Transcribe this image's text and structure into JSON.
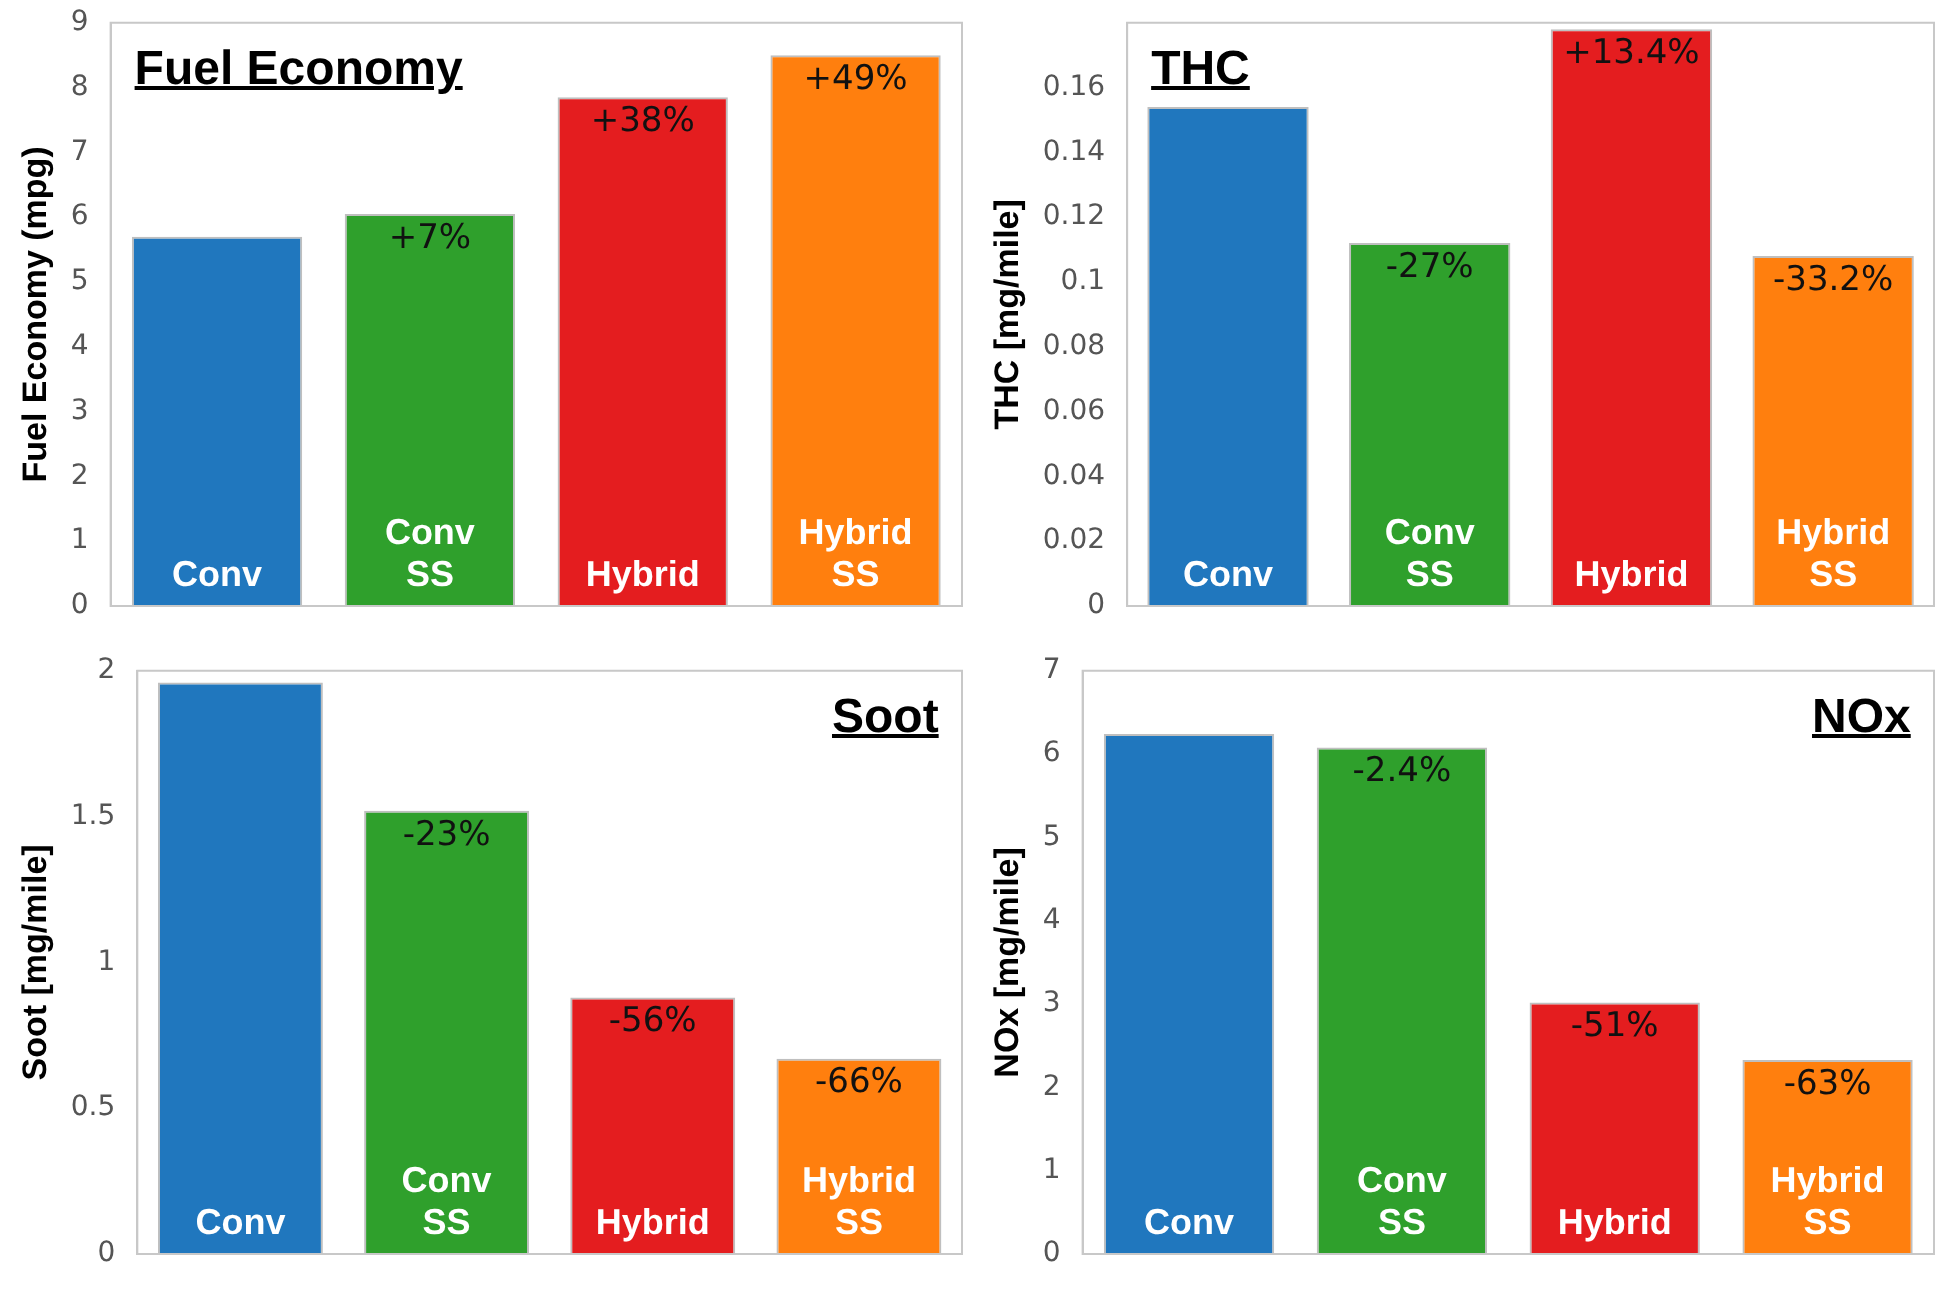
{
  "chart_data": [
    {
      "type": "bar",
      "title": "Fuel Economy",
      "ylabel": "Fuel Economy (mpg)",
      "categories": [
        "Conv",
        "Conv SS",
        "Hybrid",
        "Hybrid SS"
      ],
      "values": [
        5.7,
        6.05,
        7.85,
        8.5
      ],
      "colors": [
        "#2077be",
        "#2fa02c",
        "#e41d1f",
        "#ff7f0e"
      ],
      "ylim": [
        0,
        9
      ],
      "yticks": [
        0,
        1,
        2,
        3,
        4,
        5,
        6,
        7,
        8,
        9
      ],
      "annotations": [
        {
          "text": "+7%",
          "x": "Conv SS",
          "y": 6.05
        },
        {
          "text": "+38%",
          "x": "Hybrid",
          "y": 7.85
        },
        {
          "text": "+49%",
          "x": "Hybrid SS",
          "y": 8.5
        }
      ]
    },
    {
      "type": "bar",
      "title": "THC",
      "ylabel": "THC [mg/mile]",
      "categories": [
        "Conv",
        "Conv SS",
        "Hybrid",
        "Hybrid SS"
      ],
      "values": [
        0.154,
        0.112,
        0.178,
        0.108
      ],
      "colors": [
        "#2077be",
        "#2fa02c",
        "#e41d1f",
        "#ff7f0e"
      ],
      "ylim": [
        0,
        0.18
      ],
      "yticks": [
        0,
        0.02,
        0.04,
        0.06,
        0.08,
        0.1,
        0.12,
        0.14,
        0.16
      ],
      "annotations": [
        {
          "text": "-27%",
          "x": "Conv SS",
          "y": 0.112
        },
        {
          "text": "+13.4%",
          "x": "Hybrid",
          "y": 0.178
        },
        {
          "text": "-33.2%",
          "x": "Hybrid SS",
          "y": 0.108
        }
      ]
    },
    {
      "type": "bar",
      "title": "Soot",
      "ylabel": "Soot [mg/mile]",
      "categories": [
        "Conv",
        "Conv SS",
        "Hybrid",
        "Hybrid SS"
      ],
      "values": [
        1.96,
        1.52,
        0.88,
        0.67
      ],
      "colors": [
        "#2077be",
        "#2fa02c",
        "#e41d1f",
        "#ff7f0e"
      ],
      "ylim": [
        0,
        2
      ],
      "yticks": [
        0,
        0.5,
        1,
        1.5,
        2
      ],
      "annotations": [
        {
          "text": "-23%",
          "x": "Conv SS",
          "y": 1.52
        },
        {
          "text": "-56%",
          "x": "Hybrid",
          "y": 0.88
        },
        {
          "text": "-66%",
          "x": "Hybrid SS",
          "y": 0.67
        }
      ]
    },
    {
      "type": "bar",
      "title": "NOx",
      "ylabel": "NOx [mg/mile]",
      "categories": [
        "Conv",
        "Conv SS",
        "Hybrid",
        "Hybrid SS"
      ],
      "values": [
        6.24,
        6.08,
        3.02,
        2.33
      ],
      "colors": [
        "#2077be",
        "#2fa02c",
        "#e41d1f",
        "#ff7f0e"
      ],
      "ylim": [
        0,
        7
      ],
      "yticks": [
        0,
        1,
        2,
        3,
        4,
        5,
        6,
        7
      ],
      "annotations": [
        {
          "text": "-2.4%",
          "x": "Conv SS",
          "y": 6.08
        },
        {
          "text": "-51%",
          "x": "Hybrid",
          "y": 3.02
        },
        {
          "text": "-63%",
          "x": "Hybrid SS",
          "y": 2.33
        }
      ]
    }
  ]
}
